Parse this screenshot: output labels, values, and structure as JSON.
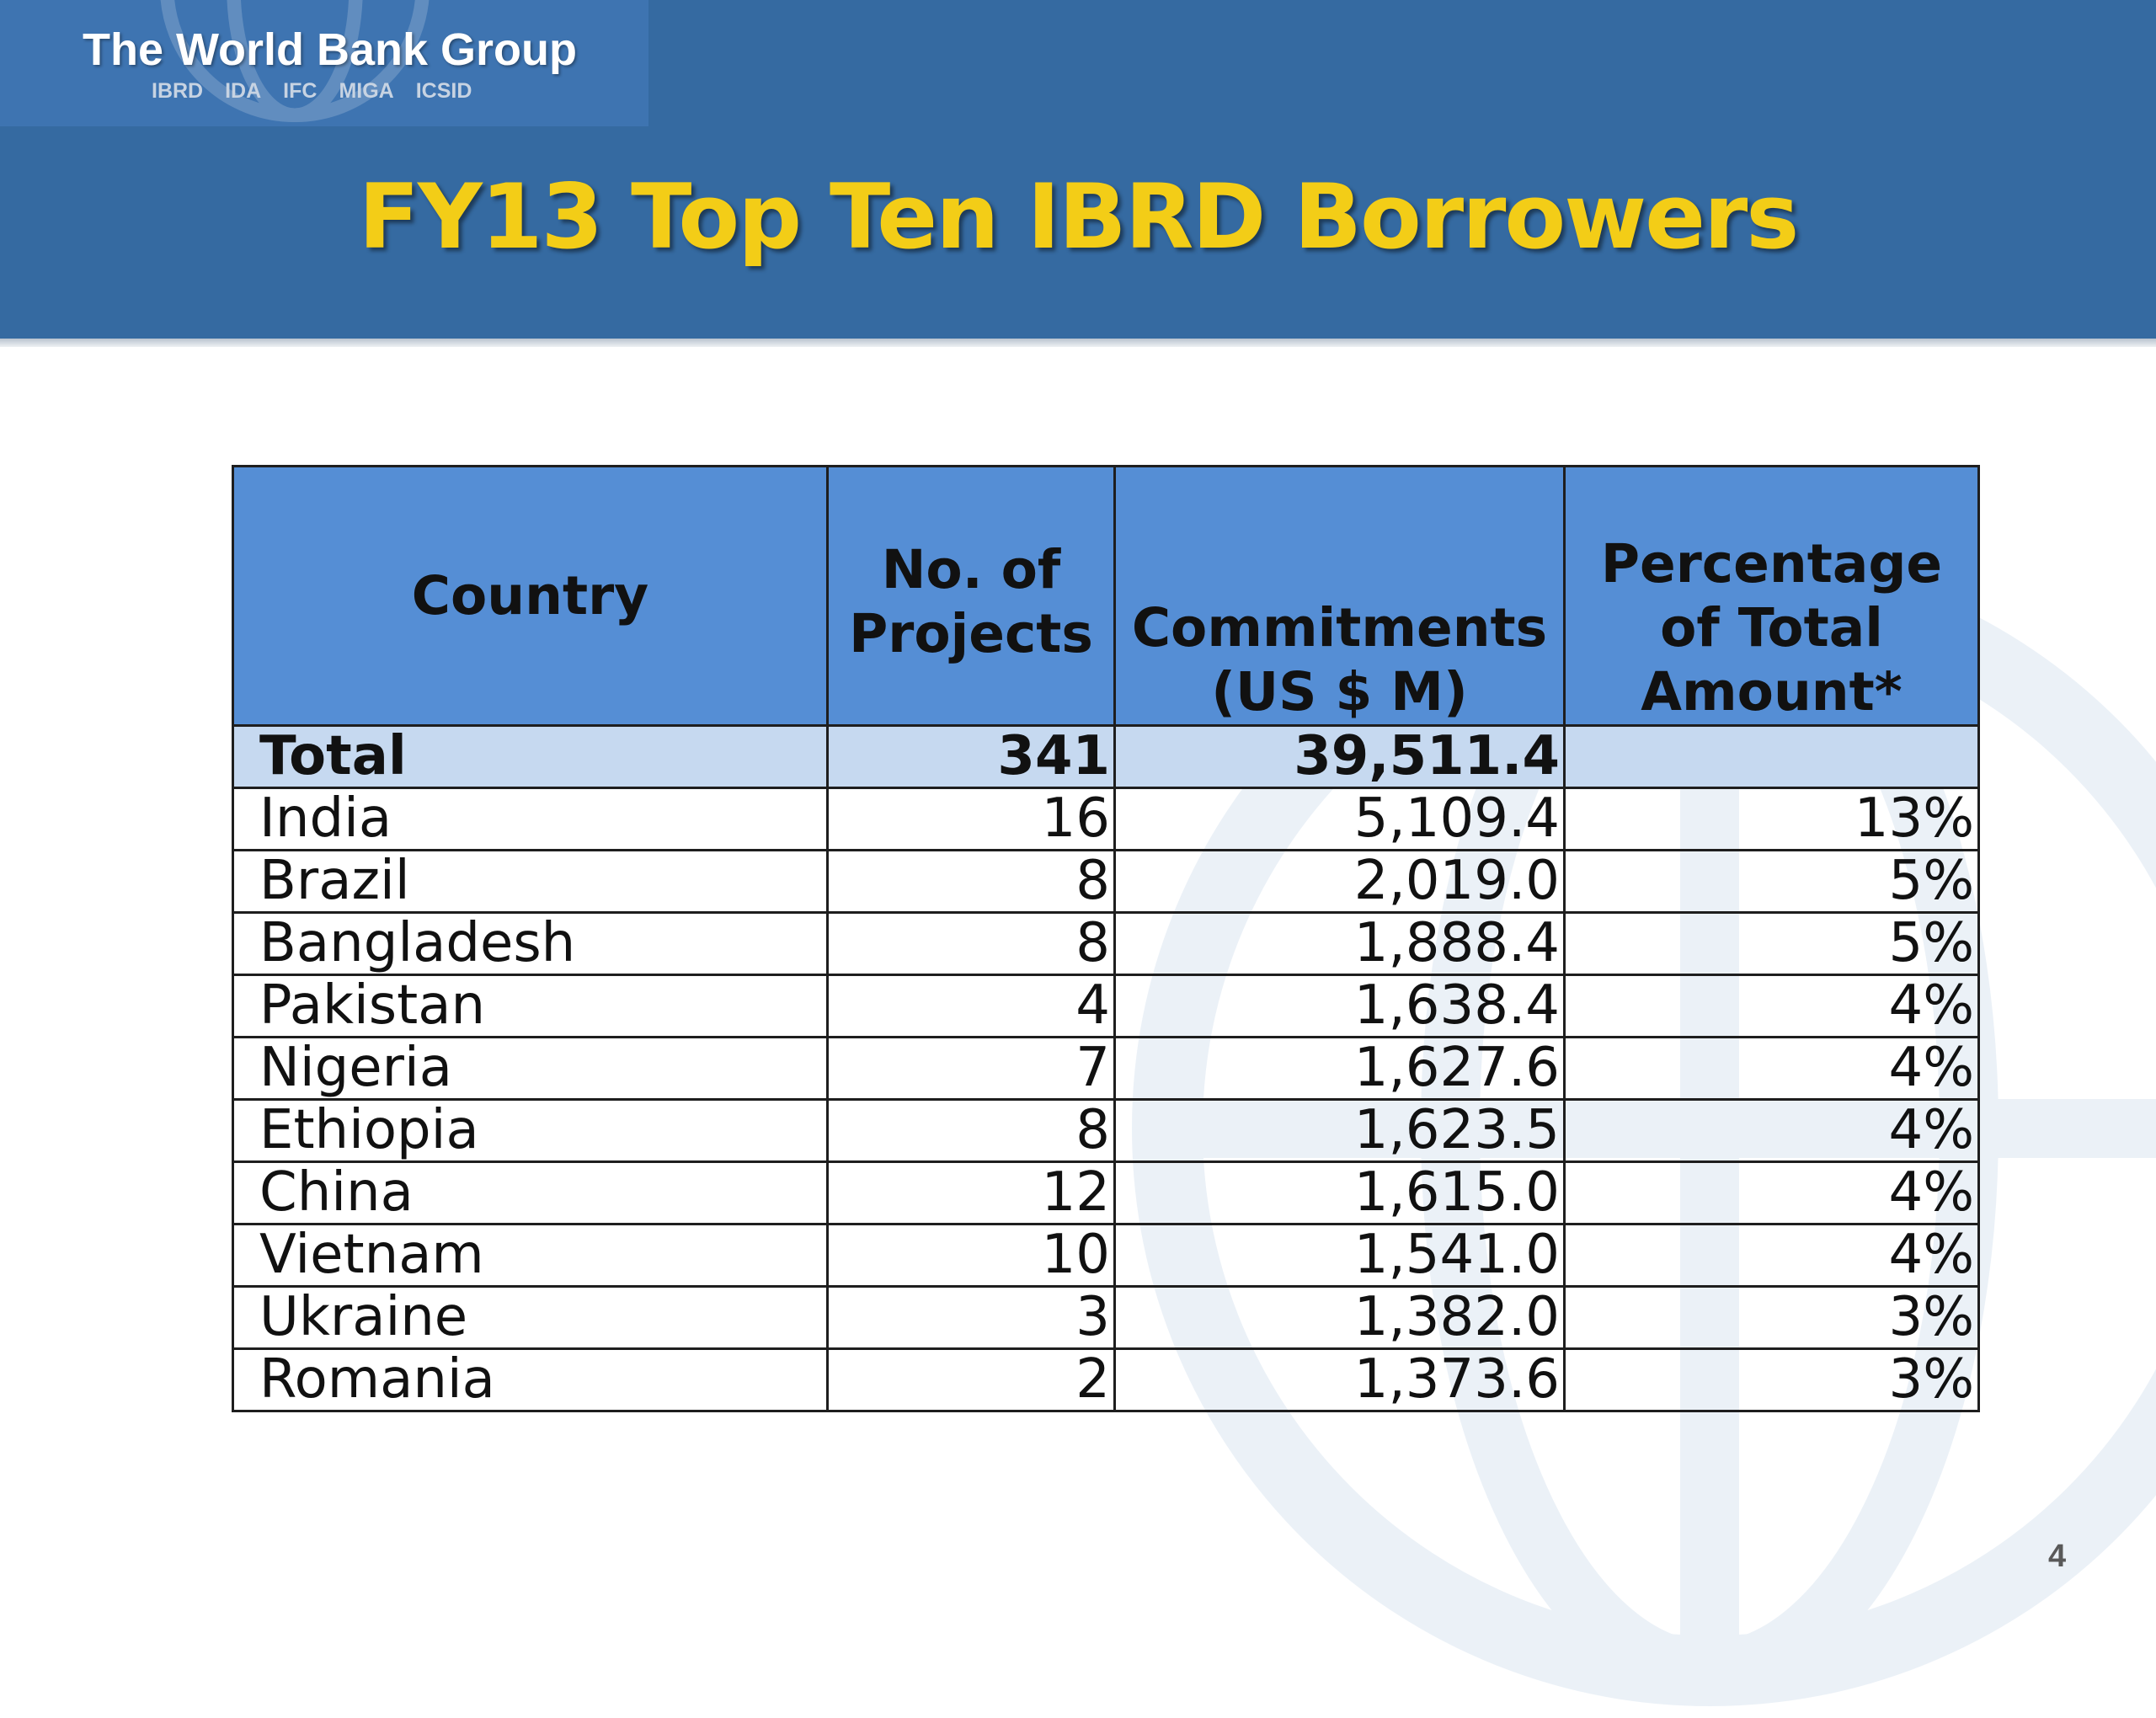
{
  "logo": {
    "title": "The World Bank Group",
    "subsidiaries": [
      "IBRD",
      "IDA",
      "IFC",
      "MIGA",
      "ICSID"
    ]
  },
  "slide": {
    "title": "FY13 Top Ten IBRD Borrowers",
    "page_number": "4"
  },
  "colors": {
    "header_band": "#356aa1",
    "title_text": "#f3cd17",
    "table_header": "#558ed5",
    "total_row": "#c6d9f0"
  },
  "table": {
    "headers": {
      "country": "Country",
      "projects_line1": "No. of",
      "projects_line2": "Projects",
      "commitments_line1": "Commitments",
      "commitments_line2": "(US $ M)",
      "percentage_line1": "Percentage",
      "percentage_line2": "of Total",
      "percentage_line3": "Amount*"
    },
    "total": {
      "label": "Total",
      "projects": "341",
      "commitments": "39,511.4",
      "percentage": ""
    },
    "rows": [
      {
        "country": "India",
        "projects": "16",
        "commitments": "5,109.4",
        "percentage": "13%"
      },
      {
        "country": "Brazil",
        "projects": "8",
        "commitments": "2,019.0",
        "percentage": "5%"
      },
      {
        "country": "Bangladesh",
        "projects": "8",
        "commitments": "1,888.4",
        "percentage": "5%"
      },
      {
        "country": "Pakistan",
        "projects": "4",
        "commitments": "1,638.4",
        "percentage": "4%"
      },
      {
        "country": "Nigeria",
        "projects": "7",
        "commitments": "1,627.6",
        "percentage": "4%"
      },
      {
        "country": "Ethiopia",
        "projects": "8",
        "commitments": "1,623.5",
        "percentage": "4%"
      },
      {
        "country": "China",
        "projects": "12",
        "commitments": "1,615.0",
        "percentage": "4%"
      },
      {
        "country": "Vietnam",
        "projects": "10",
        "commitments": "1,541.0",
        "percentage": "4%"
      },
      {
        "country": "Ukraine",
        "projects": "3",
        "commitments": "1,382.0",
        "percentage": "3%"
      },
      {
        "country": "Romania",
        "projects": "2",
        "commitments": "1,373.6",
        "percentage": "3%"
      }
    ]
  }
}
